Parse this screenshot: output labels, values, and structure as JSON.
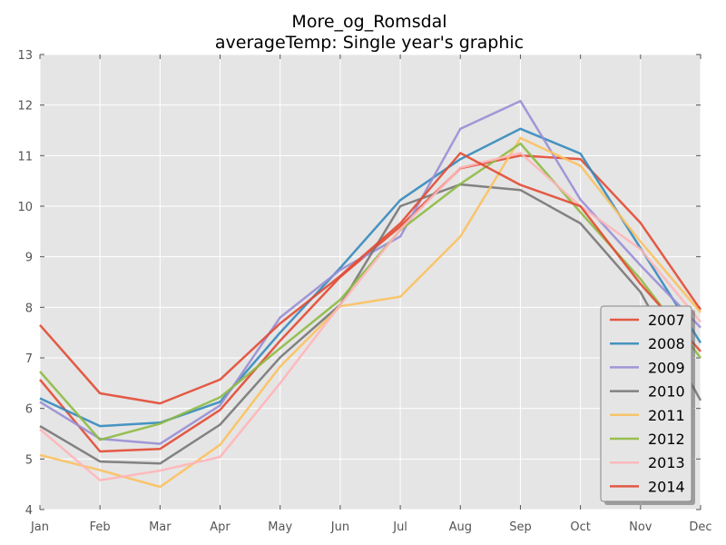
{
  "chart_data": {
    "type": "line",
    "title": "More_og_Romsdal",
    "subtitle": "averageTemp: Single year's graphic",
    "xlabel": "",
    "ylabel": "",
    "categories": [
      "Jan",
      "Feb",
      "Mar",
      "Apr",
      "May",
      "Jun",
      "Jul",
      "Aug",
      "Sep",
      "Oct",
      "Nov",
      "Dec"
    ],
    "yticks": [
      "4",
      "5",
      "6",
      "7",
      "8",
      "9",
      "10",
      "11",
      "12",
      "13"
    ],
    "ylim": [
      4,
      13
    ],
    "grid": true,
    "legend_position": "lower-right",
    "series": [
      {
        "name": "2007",
        "color": "#e24a33",
        "values": [
          6.57,
          5.15,
          5.2,
          5.97,
          7.34,
          8.6,
          9.6,
          10.75,
          11.0,
          10.93,
          9.67,
          7.95
        ]
      },
      {
        "name": "2008",
        "color": "#348abd",
        "values": [
          6.2,
          5.65,
          5.72,
          6.13,
          7.5,
          8.78,
          10.12,
          10.93,
          11.53,
          11.04,
          9.17,
          7.3
        ]
      },
      {
        "name": "2009",
        "color": "#988ed5",
        "values": [
          6.13,
          5.4,
          5.3,
          6.06,
          7.8,
          8.74,
          9.4,
          11.53,
          12.08,
          10.13,
          8.83,
          7.6
        ]
      },
      {
        "name": "2010",
        "color": "#777777",
        "values": [
          5.65,
          4.95,
          4.91,
          5.68,
          7.01,
          8.05,
          10.0,
          10.43,
          10.32,
          9.66,
          8.3,
          6.16
        ]
      },
      {
        "name": "2011",
        "color": "#fbc15e",
        "values": [
          5.08,
          4.78,
          4.45,
          5.28,
          6.83,
          8.02,
          8.21,
          9.4,
          11.35,
          10.8,
          9.3,
          7.9
        ]
      },
      {
        "name": "2012",
        "color": "#8eba42",
        "values": [
          6.73,
          5.38,
          5.7,
          6.22,
          7.19,
          8.15,
          9.53,
          10.44,
          11.24,
          9.88,
          8.56,
          7.0
        ]
      },
      {
        "name": "2013",
        "color": "#ffb5b8",
        "values": [
          5.59,
          4.58,
          4.77,
          5.04,
          6.5,
          8.05,
          9.54,
          10.76,
          11.05,
          10.0,
          9.15,
          7.71
        ]
      },
      {
        "name": "2014",
        "color": "#e24a33",
        "values": [
          7.65,
          6.3,
          6.1,
          6.57,
          7.68,
          8.62,
          9.66,
          11.05,
          10.42,
          10.0,
          8.46,
          7.13
        ]
      }
    ]
  }
}
